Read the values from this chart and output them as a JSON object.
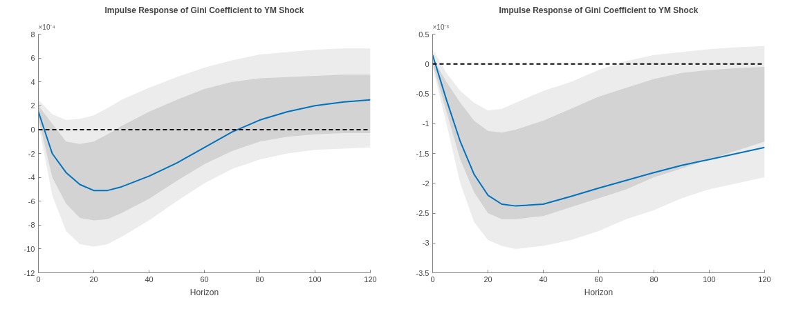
{
  "chart_data": [
    {
      "type": "line",
      "title": "Impulse Response of Gini Coefficient to YM Shock",
      "xlabel": "Horizon",
      "annotations": [
        "×10⁻⁴"
      ],
      "x": [
        0,
        5,
        10,
        15,
        20,
        25,
        30,
        40,
        50,
        60,
        70,
        80,
        90,
        100,
        110,
        120
      ],
      "xlim": [
        0,
        120
      ],
      "xticks": [
        0,
        20,
        40,
        60,
        80,
        100,
        120
      ],
      "ylim": [
        -12,
        8
      ],
      "yticks": [
        -12,
        -10,
        -8,
        -6,
        -4,
        -2,
        0,
        2,
        4,
        6,
        8
      ],
      "grid": false,
      "ref_lines": [
        {
          "axis": "y",
          "value": 0,
          "color": "#000000",
          "line_style": "dashed"
        }
      ],
      "series": [
        {
          "color": "#0072bd",
          "values": [
            null,
            null,
            null,
            null,
            null,
            null,
            null,
            null,
            null,
            null,
            null,
            null,
            null,
            null,
            null,
            null
          ],
          "lower": [
            0.5,
            -5.5,
            -8.5,
            -9.6,
            -9.8,
            -9.6,
            -9.0,
            -7.6,
            -6.0,
            -4.5,
            -3.3,
            -2.5,
            -2.0,
            -1.7,
            -1.6,
            -1.5
          ],
          "upper": [
            2.5,
            1.3,
            0.8,
            0.9,
            1.2,
            1.8,
            2.5,
            3.5,
            4.4,
            5.2,
            5.8,
            6.3,
            6.5,
            6.7,
            6.8,
            6.8
          ]
        },
        {
          "color": "#0072bd",
          "values": [
            1.5,
            -2,
            -3.6,
            -4.6,
            -5.1,
            -5.1,
            -4.8,
            -3.9,
            -2.8,
            -1.5,
            -0.2,
            0.8,
            1.5,
            2.0,
            2.3,
            2.5
          ],
          "lower": [
            1.0,
            -4,
            -6.2,
            -7.4,
            -7.6,
            -7.5,
            -7.0,
            -5.8,
            -4.3,
            -2.9,
            -1.8,
            -1.0,
            -0.6,
            -0.4,
            -0.3,
            -0.3
          ],
          "upper": [
            2.0,
            0.5,
            -1,
            -1.2,
            -1.0,
            -0.4,
            0.3,
            1.5,
            2.5,
            3.4,
            4.0,
            4.3,
            4.4,
            4.5,
            4.6,
            4.6
          ]
        }
      ]
    },
    {
      "type": "line",
      "title": "Impulse Response of Gini Coefficient to YM Shock",
      "xlabel": "Horizon",
      "annotations": [
        "×10⁻³"
      ],
      "x": [
        0,
        5,
        10,
        15,
        20,
        25,
        30,
        40,
        50,
        60,
        70,
        80,
        90,
        100,
        110,
        120
      ],
      "xlim": [
        0,
        120
      ],
      "xticks": [
        0,
        20,
        40,
        60,
        80,
        100,
        120
      ],
      "ylim": [
        -3.5,
        0.5
      ],
      "yticks": [
        -3.5,
        -3,
        -2.5,
        -2,
        -1.5,
        -1,
        -0.5,
        0,
        0.5
      ],
      "grid": false,
      "ref_lines": [
        {
          "axis": "y",
          "value": 0,
          "color": "#000000",
          "line_style": "dashed"
        }
      ],
      "series": [
        {
          "color": "#0072bd",
          "values": [
            null,
            null,
            null,
            null,
            null,
            null,
            null,
            null,
            null,
            null,
            null,
            null,
            null,
            null,
            null,
            null
          ],
          "lower": [
            -0.05,
            -1.0,
            -2.0,
            -2.65,
            -2.95,
            -3.05,
            -3.1,
            -3.05,
            -2.95,
            -2.8,
            -2.6,
            -2.45,
            -2.25,
            -2.1,
            -2.0,
            -1.9
          ],
          "upper": [
            0.25,
            -0.15,
            -0.45,
            -0.65,
            -0.78,
            -0.75,
            -0.65,
            -0.45,
            -0.3,
            -0.1,
            0.05,
            0.15,
            0.2,
            0.25,
            0.28,
            0.3
          ]
        },
        {
          "color": "#0072bd",
          "values": [
            0.15,
            -0.6,
            -1.3,
            -1.85,
            -2.2,
            -2.35,
            -2.38,
            -2.35,
            -2.22,
            -2.08,
            -1.95,
            -1.82,
            -1.7,
            -1.6,
            -1.5,
            -1.4
          ],
          "lower": [
            0.0,
            -0.8,
            -1.6,
            -2.15,
            -2.5,
            -2.6,
            -2.6,
            -2.55,
            -2.4,
            -2.25,
            -2.1,
            -1.9,
            -1.75,
            -1.6,
            -1.45,
            -1.3
          ],
          "upper": [
            0.1,
            -0.3,
            -0.65,
            -0.95,
            -1.12,
            -1.15,
            -1.1,
            -0.95,
            -0.75,
            -0.55,
            -0.4,
            -0.25,
            -0.15,
            -0.1,
            -0.07,
            -0.05
          ]
        }
      ]
    }
  ]
}
